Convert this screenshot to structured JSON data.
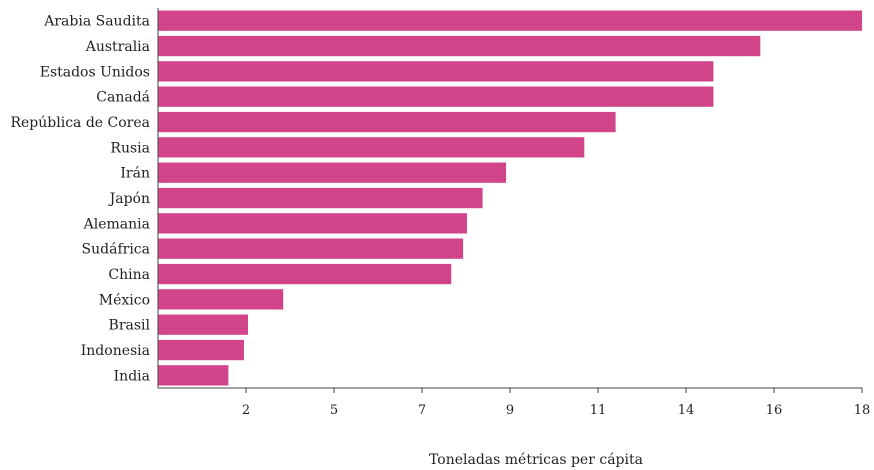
{
  "chart_data": {
    "type": "bar",
    "orientation": "horizontal",
    "title": "",
    "xlabel": "Toneladas métricas per cápita",
    "ylabel": "",
    "categories": [
      "Arabia Saudita",
      "Australia",
      "Estados Unidos",
      "Canadá",
      "República de Corea",
      "Rusia",
      "Irán",
      "Japón",
      "Alemania",
      "Sudáfrica",
      "China",
      "México",
      "Brasil",
      "Indonesia",
      "India"
    ],
    "values": [
      18.0,
      15.4,
      14.2,
      14.2,
      11.7,
      10.9,
      8.9,
      8.3,
      7.9,
      7.8,
      7.5,
      3.2,
      2.3,
      2.2,
      1.8
    ],
    "xlim": [
      0,
      18
    ],
    "xticks": [
      "2",
      "5",
      "7",
      "9",
      "11",
      "14",
      "16",
      "18"
    ],
    "bar_color": "#d6478d",
    "grid": false,
    "legend": "none"
  }
}
